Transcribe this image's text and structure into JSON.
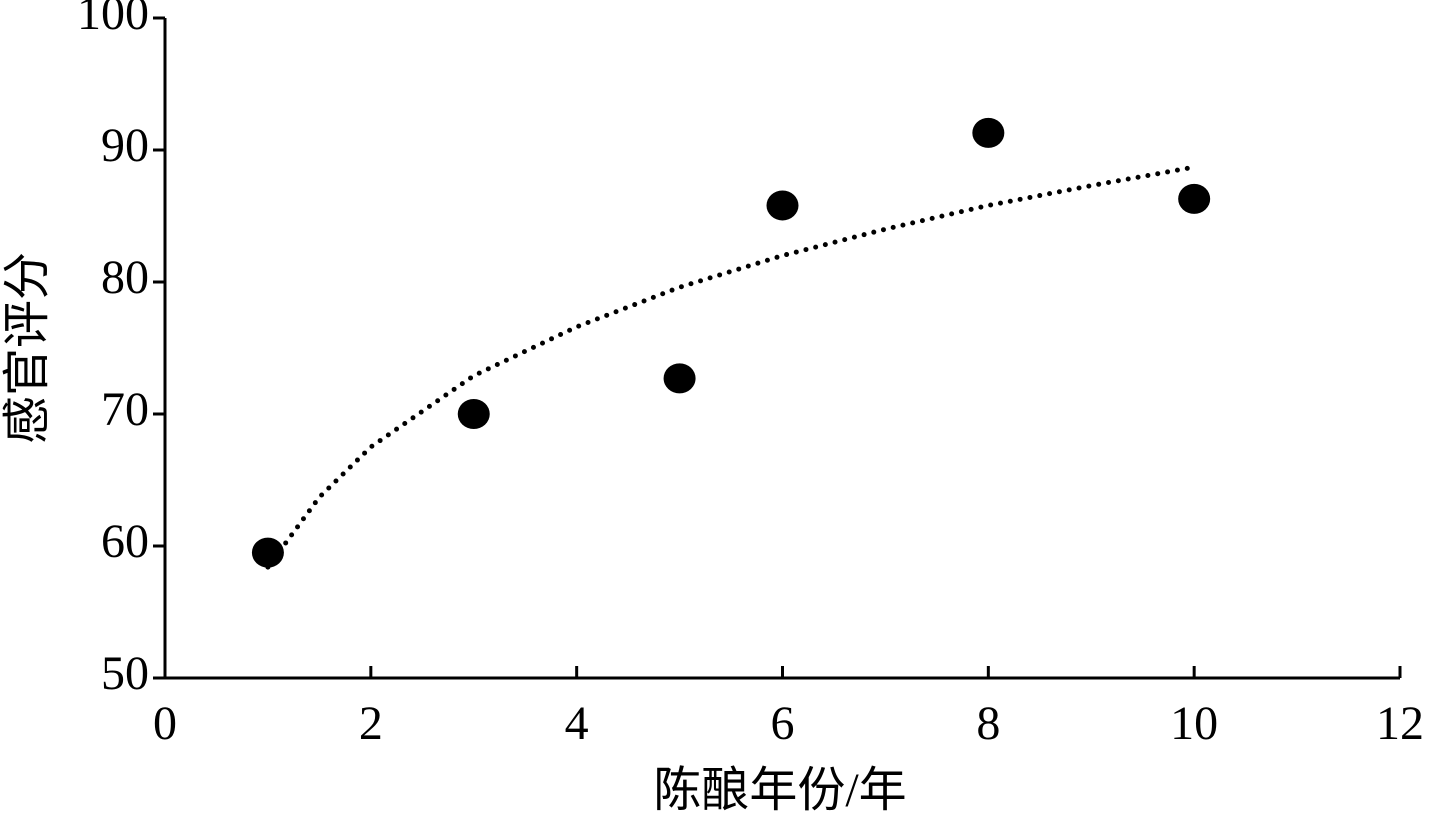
{
  "chart_data": {
    "type": "scatter",
    "x_label": "陈酿年份/年",
    "y_label": "感官评分",
    "series": [
      {
        "color": "#000000",
        "x": [
          1,
          3,
          5,
          6,
          8,
          10
        ],
        "values": [
          59.5,
          70,
          72.7,
          85.8,
          91.3,
          86.3
        ]
      }
    ],
    "trendline": {
      "color": "#000000",
      "x": [
        1,
        1.5,
        2,
        3,
        4,
        5,
        6,
        7,
        8,
        9,
        10
      ],
      "values": [
        58.4,
        63.7,
        67.5,
        72.9,
        76.6,
        79.6,
        82.0,
        84.0,
        85.8,
        87.3,
        88.7
      ]
    },
    "xlim": [
      0,
      12
    ],
    "xticks": [
      0,
      2,
      4,
      6,
      8,
      10,
      12
    ],
    "ylim": [
      50,
      100
    ],
    "yticks": [
      50,
      60,
      70,
      80,
      90,
      100
    ],
    "grid": false
  }
}
